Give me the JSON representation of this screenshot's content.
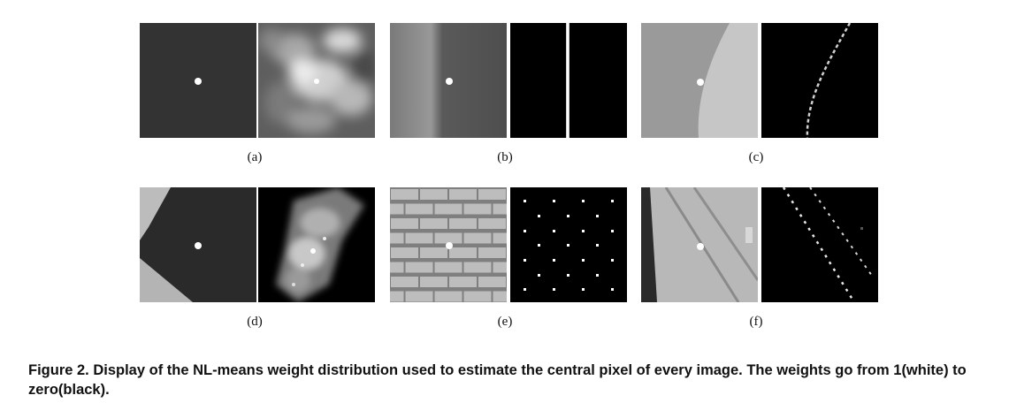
{
  "figure": {
    "caption": "Figure 2. Display of the NL-means weight distribution used to estimate the central pixel of every image.  The weights go from 1(white) to zero(black).",
    "subfigure_labels": [
      "(a)",
      "(b)",
      "(c)",
      "(d)",
      "(e)",
      "(f)"
    ]
  }
}
